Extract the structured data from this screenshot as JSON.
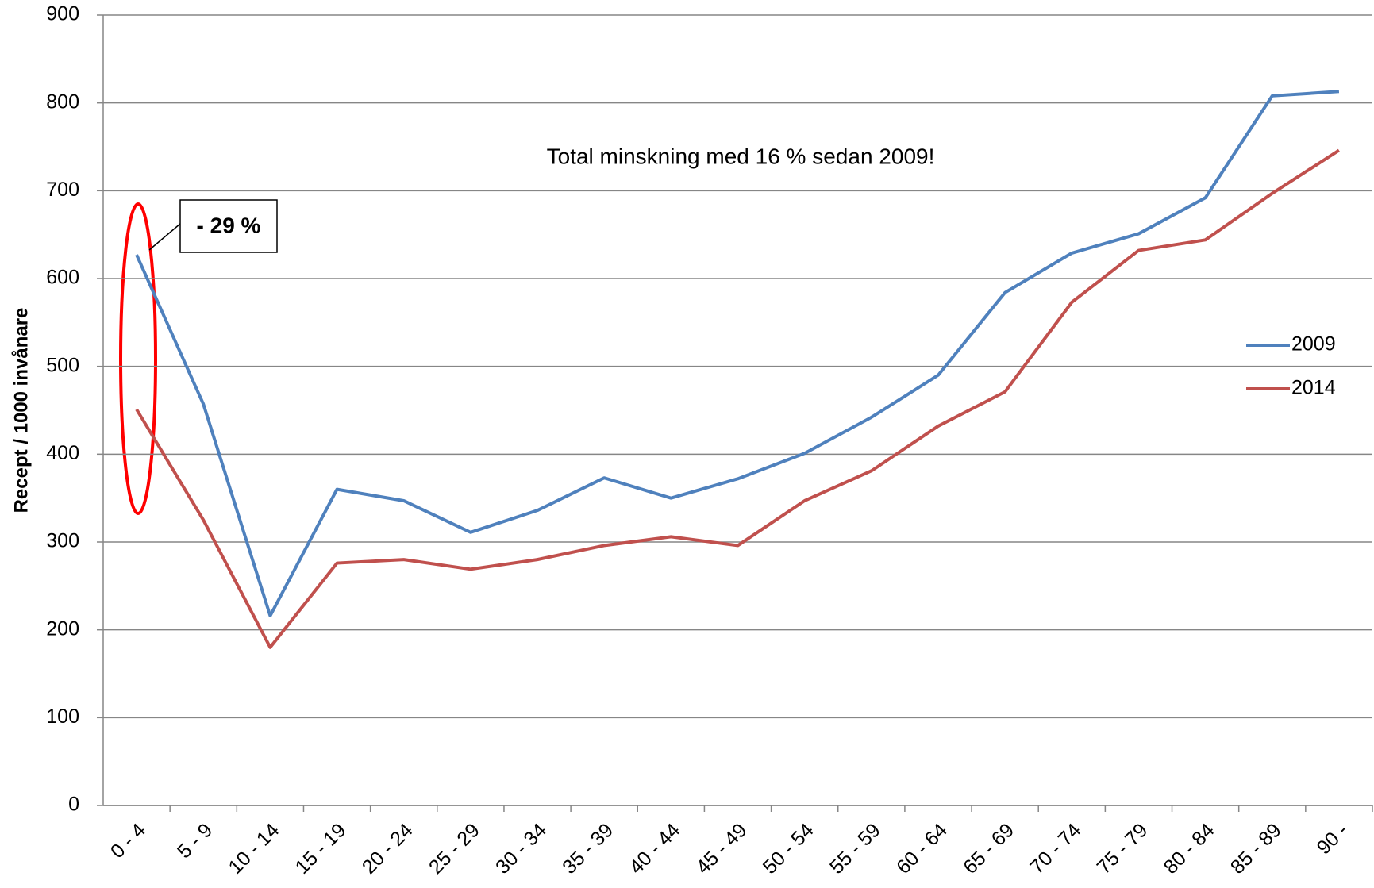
{
  "chart_data": {
    "type": "line",
    "ylabel": "Recept / 1000 invånare",
    "annotations": [
      "Total minskning med 16 % sedan 2009!",
      "- 29 %"
    ],
    "categories": [
      "0 - 4",
      "5 - 9",
      "10 - 14",
      "15 - 19",
      "20 - 24",
      "25 - 29",
      "30 - 34",
      "35 - 39",
      "40 - 44",
      "45 - 49",
      "50 - 54",
      "55 - 59",
      "60 - 64",
      "65 - 69",
      "70 - 74",
      "75 - 79",
      "80 - 84",
      "85 - 89",
      "90 -"
    ],
    "series": [
      {
        "name": "2009",
        "color": "#4f81bd",
        "values": [
          627,
          457,
          216,
          360,
          347,
          311,
          336,
          373,
          350,
          372,
          401,
          442,
          490,
          584,
          629,
          651,
          692,
          808,
          813
        ]
      },
      {
        "name": "2014",
        "color": "#c0504d",
        "values": [
          451,
          325,
          180,
          276,
          280,
          269,
          280,
          296,
          306,
          296,
          347,
          381,
          432,
          471,
          573,
          632,
          644,
          697,
          746
        ]
      }
    ],
    "ylim": [
      0,
      900
    ],
    "yticks": [
      0,
      100,
      200,
      300,
      400,
      500,
      600,
      700,
      800,
      900
    ],
    "grid": true,
    "legend": "right"
  }
}
